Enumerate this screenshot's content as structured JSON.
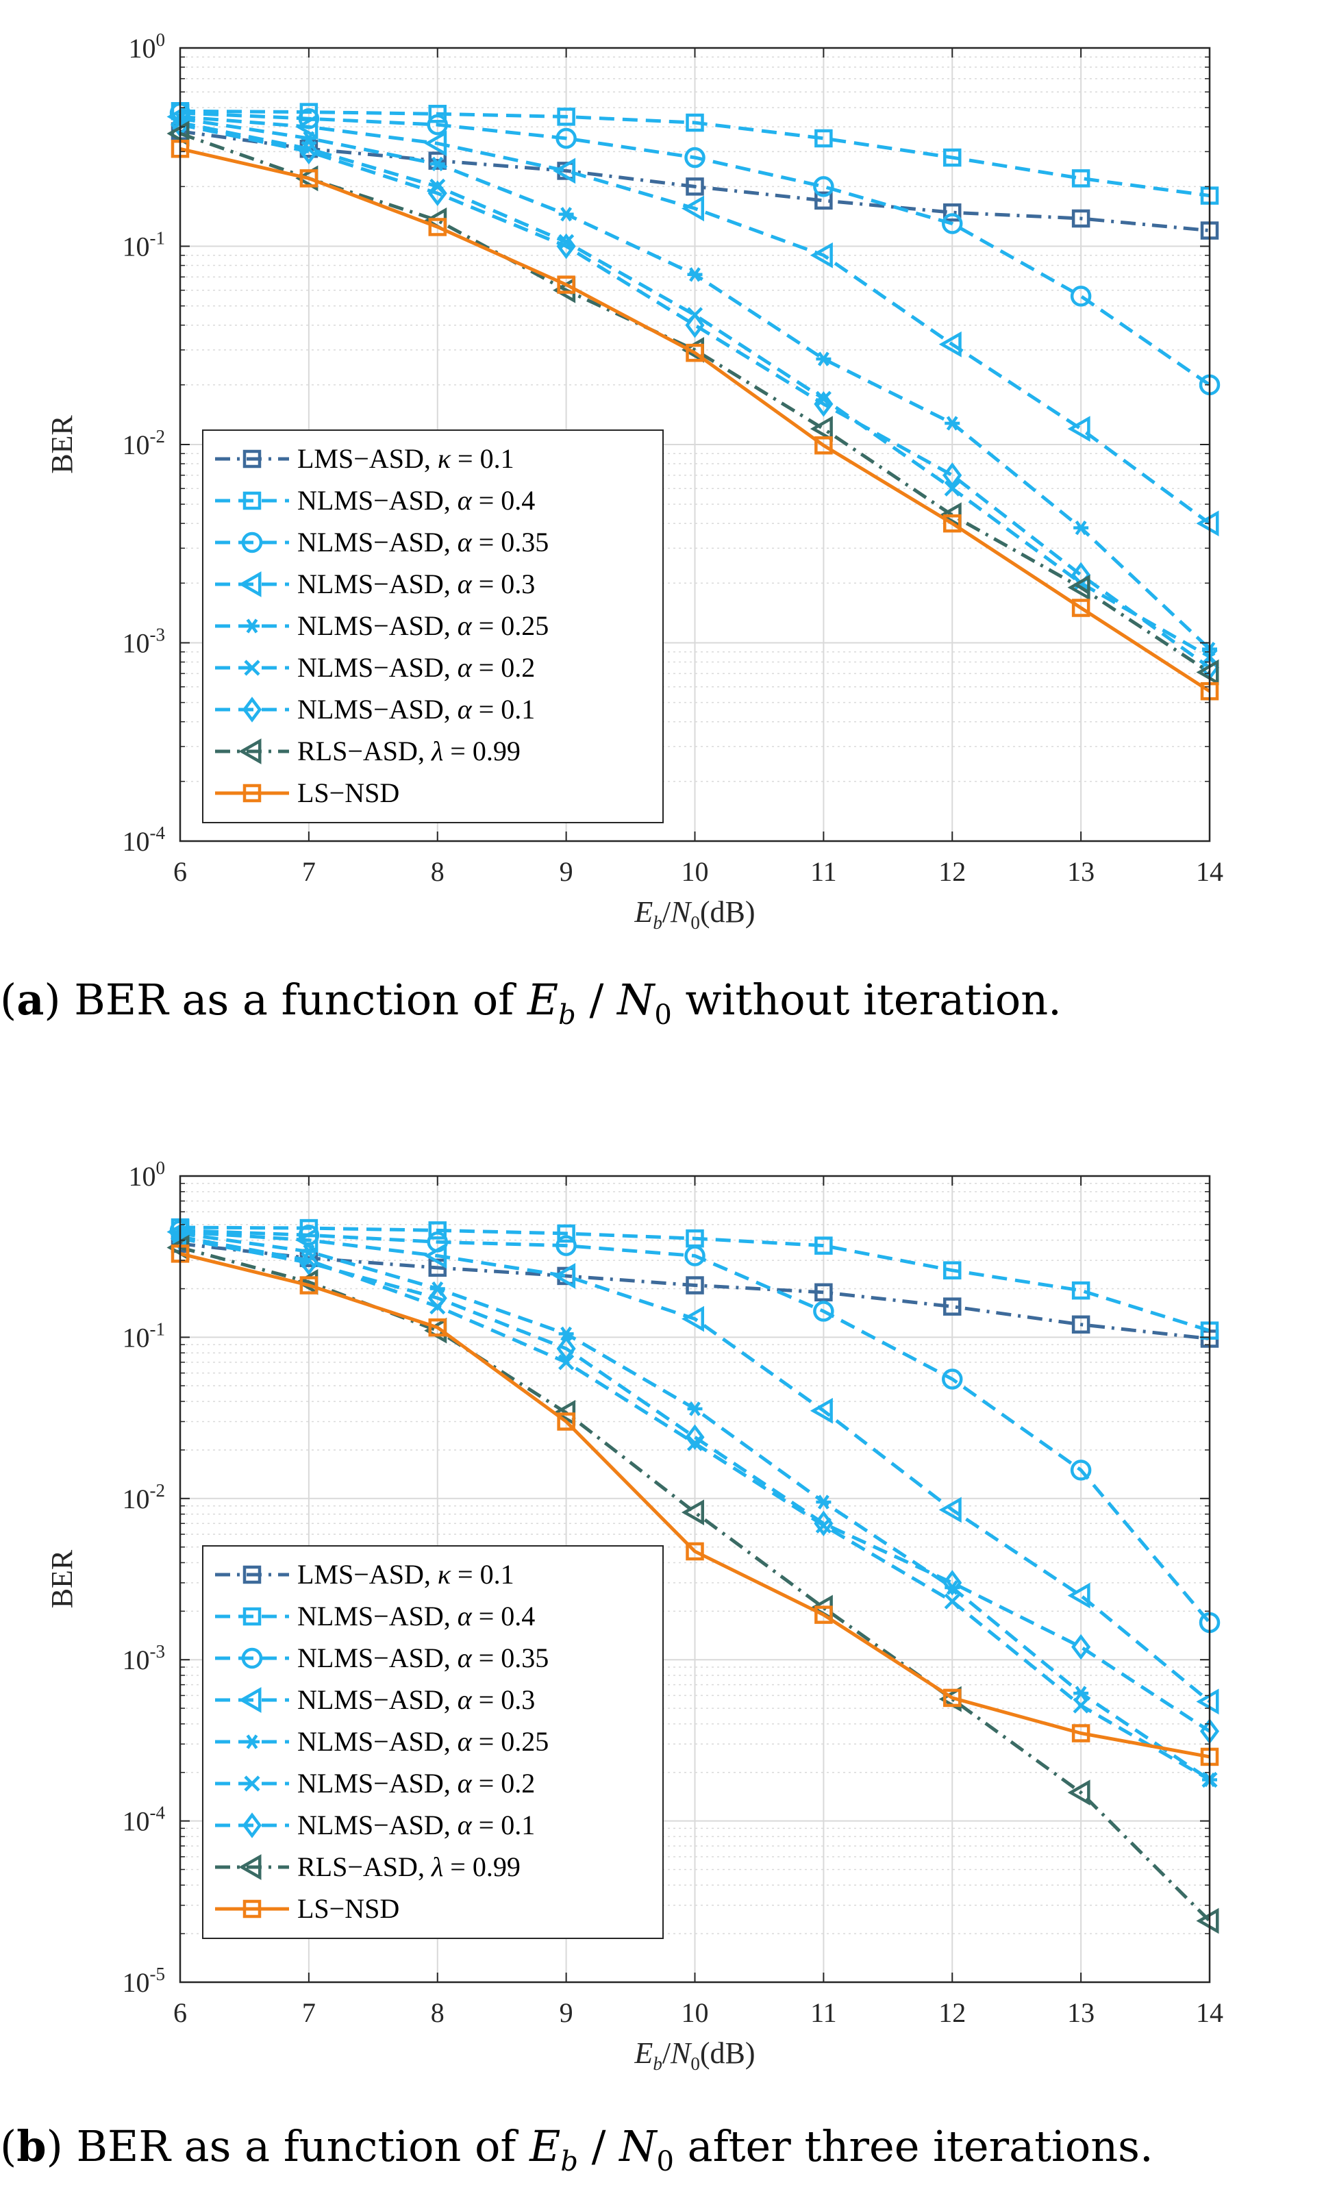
{
  "colors": {
    "lms": "#3d6a9a",
    "nlms": "#22b2ee",
    "rls": "#3a6b64",
    "ls": "#f07f16",
    "grid": "#d9d9d9",
    "axis": "#262626"
  },
  "chart_data": [
    {
      "type": "line",
      "panel": "a",
      "caption": {
        "label": "a",
        "text_before": "BER as a function of",
        "eb": "E",
        "eb_sub": "b",
        "slash": "/",
        "n0": "N",
        "n0_sub": "0",
        "text_after": "without iteration."
      },
      "xlabel": {
        "e": "E",
        "e_sub": "b",
        "slash": "/",
        "n": "N",
        "n_sub": "0",
        "unit": "(dB)"
      },
      "ylabel": "BER",
      "xlim": [
        6,
        14
      ],
      "ylim_exp": [
        -4,
        0
      ],
      "x": [
        6,
        7,
        8,
        9,
        10,
        11,
        12,
        13,
        14
      ],
      "y_ticks": [
        {
          "base": "10",
          "exp": "0"
        },
        {
          "base": "10",
          "exp": "-1"
        },
        {
          "base": "10",
          "exp": "-2"
        },
        {
          "base": "10",
          "exp": "-3"
        },
        {
          "base": "10",
          "exp": "-4"
        }
      ],
      "series": [
        {
          "name": "LMS−ASD",
          "param": "κ",
          "value": "0.1",
          "marker": "square",
          "style": "dashdot",
          "color": "#3d6a9a",
          "values": [
            0.38,
            0.31,
            0.27,
            0.24,
            0.2,
            0.17,
            0.148,
            0.138,
            0.12
          ]
        },
        {
          "name": "NLMS−ASD",
          "param": "α",
          "value": "0.4",
          "marker": "square",
          "style": "dashed",
          "color": "#22b2ee",
          "values": [
            0.48,
            0.475,
            0.465,
            0.45,
            0.42,
            0.35,
            0.28,
            0.22,
            0.18
          ]
        },
        {
          "name": "NLMS−ASD",
          "param": "α",
          "value": "0.35",
          "marker": "circle",
          "style": "dashed",
          "color": "#22b2ee",
          "values": [
            0.47,
            0.44,
            0.41,
            0.35,
            0.28,
            0.2,
            0.13,
            0.056,
            0.02
          ]
        },
        {
          "name": "NLMS−ASD",
          "param": "α",
          "value": "0.3",
          "marker": "triangle-left",
          "style": "dashed",
          "color": "#22b2ee",
          "values": [
            0.45,
            0.4,
            0.33,
            0.24,
            0.155,
            0.09,
            0.032,
            0.012,
            0.004
          ]
        },
        {
          "name": "NLMS−ASD",
          "param": "α",
          "value": "0.25",
          "marker": "asterisk",
          "style": "dashed",
          "color": "#22b2ee",
          "values": [
            0.44,
            0.35,
            0.26,
            0.145,
            0.072,
            0.027,
            0.0128,
            0.0038,
            0.00093
          ]
        },
        {
          "name": "NLMS−ASD",
          "param": "α",
          "value": "0.2",
          "marker": "x",
          "style": "dashed",
          "color": "#22b2ee",
          "values": [
            0.42,
            0.31,
            0.2,
            0.105,
            0.045,
            0.017,
            0.006,
            0.002,
            0.00085
          ]
        },
        {
          "name": "NLMS−ASD",
          "param": "α",
          "value": "0.1",
          "marker": "diamond",
          "style": "dashed",
          "color": "#22b2ee",
          "values": [
            0.41,
            0.3,
            0.185,
            0.1,
            0.04,
            0.016,
            0.007,
            0.0022,
            0.00075
          ]
        },
        {
          "name": "RLS−ASD",
          "param": "λ",
          "value": "0.99",
          "marker": "triangle-left",
          "style": "dashdot",
          "color": "#3a6b64",
          "values": [
            0.37,
            0.22,
            0.135,
            0.06,
            0.03,
            0.012,
            0.0044,
            0.0019,
            0.00071
          ]
        },
        {
          "name": "LS−NSD",
          "param": "",
          "value": "",
          "marker": "square",
          "style": "solid",
          "color": "#f07f16",
          "values": [
            0.31,
            0.22,
            0.125,
            0.064,
            0.029,
            0.0099,
            0.004,
            0.0015,
            0.00057
          ]
        }
      ]
    },
    {
      "type": "line",
      "panel": "b",
      "caption": {
        "label": "b",
        "text_before": "BER as a function of",
        "eb": "E",
        "eb_sub": "b",
        "slash": "/",
        "n0": "N",
        "n0_sub": "0",
        "text_after": "after three iterations."
      },
      "xlabel": {
        "e": "E",
        "e_sub": "b",
        "slash": "/",
        "n": "N",
        "n_sub": "0",
        "unit": "(dB)"
      },
      "ylabel": "BER",
      "xlim": [
        6,
        14
      ],
      "ylim_exp": [
        -5,
        0
      ],
      "x": [
        6,
        7,
        8,
        9,
        10,
        11,
        12,
        13,
        14
      ],
      "y_ticks": [
        {
          "base": "10",
          "exp": "0"
        },
        {
          "base": "10",
          "exp": "-1"
        },
        {
          "base": "10",
          "exp": "-2"
        },
        {
          "base": "10",
          "exp": "-3"
        },
        {
          "base": "10",
          "exp": "-4"
        },
        {
          "base": "10",
          "exp": "-5"
        }
      ],
      "series": [
        {
          "name": "LMS−ASD",
          "param": "κ",
          "value": "0.1",
          "marker": "square",
          "style": "dashdot",
          "color": "#3d6a9a",
          "values": [
            0.38,
            0.31,
            0.27,
            0.24,
            0.21,
            0.19,
            0.155,
            0.12,
            0.098
          ]
        },
        {
          "name": "NLMS−ASD",
          "param": "α",
          "value": "0.4",
          "marker": "square",
          "style": "dashed",
          "color": "#22b2ee",
          "values": [
            0.48,
            0.475,
            0.46,
            0.44,
            0.41,
            0.37,
            0.26,
            0.195,
            0.11
          ]
        },
        {
          "name": "NLMS−ASD",
          "param": "α",
          "value": "0.35",
          "marker": "circle",
          "style": "dashed",
          "color": "#22b2ee",
          "values": [
            0.46,
            0.43,
            0.39,
            0.37,
            0.32,
            0.145,
            0.055,
            0.015,
            0.0017
          ]
        },
        {
          "name": "NLMS−ASD",
          "param": "α",
          "value": "0.3",
          "marker": "triangle-left",
          "style": "dashed",
          "color": "#22b2ee",
          "values": [
            0.45,
            0.4,
            0.32,
            0.24,
            0.13,
            0.035,
            0.0085,
            0.0025,
            0.00055
          ]
        },
        {
          "name": "NLMS−ASD",
          "param": "α",
          "value": "0.25",
          "marker": "asterisk",
          "style": "dashed",
          "color": "#22b2ee",
          "values": [
            0.44,
            0.34,
            0.2,
            0.105,
            0.036,
            0.0095,
            0.0028,
            0.00062,
            0.00018
          ]
        },
        {
          "name": "NLMS−ASD",
          "param": "α",
          "value": "0.2",
          "marker": "x",
          "style": "dashed",
          "color": "#22b2ee",
          "values": [
            0.42,
            0.3,
            0.155,
            0.07,
            0.022,
            0.0068,
            0.0023,
            0.00052,
            0.00018
          ]
        },
        {
          "name": "NLMS−ASD",
          "param": "α",
          "value": "0.1",
          "marker": "diamond",
          "style": "dashed",
          "color": "#22b2ee",
          "values": [
            0.41,
            0.29,
            0.175,
            0.085,
            0.024,
            0.007,
            0.003,
            0.0012,
            0.00036
          ]
        },
        {
          "name": "RLS−ASD",
          "param": "λ",
          "value": "0.99",
          "marker": "triangle-left",
          "style": "dashdot",
          "color": "#3a6b64",
          "values": [
            0.36,
            0.22,
            0.11,
            0.034,
            0.0082,
            0.0021,
            0.00057,
            0.00015,
            2.4e-05
          ]
        },
        {
          "name": "LS−NSD",
          "param": "",
          "value": "",
          "marker": "square",
          "style": "solid",
          "color": "#f07f16",
          "values": [
            0.33,
            0.21,
            0.115,
            0.03,
            0.0047,
            0.0019,
            0.00058,
            0.00035,
            0.00025
          ]
        }
      ]
    }
  ]
}
